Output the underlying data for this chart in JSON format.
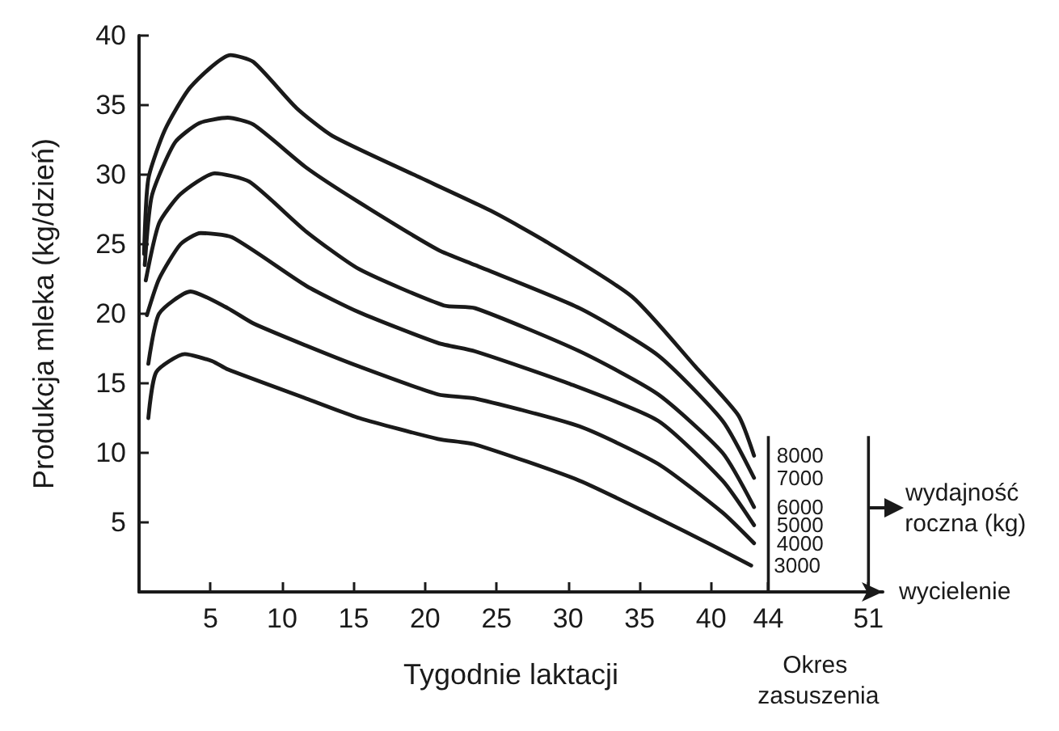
{
  "chart_data": {
    "type": "line",
    "xlabel": "Tygodnie laktacji",
    "ylabel": "Produkcja mleka (kg/dzień)",
    "xlim": [
      0,
      52
    ],
    "ylim": [
      0,
      40
    ],
    "xticks": [
      5,
      10,
      15,
      20,
      25,
      30,
      35,
      40,
      44,
      51
    ],
    "yticks": [
      5,
      10,
      15,
      20,
      25,
      30,
      35,
      40
    ],
    "annotations": [
      "wydajność roczna (kg)",
      "wycielenie",
      "Okres zasuszenia"
    ],
    "series": [
      {
        "name": "8000",
        "color": "#1a1a1a",
        "x": [
          0.35,
          0.65,
          1.8,
          3.6,
          6.4,
          8,
          11,
          13.5,
          19,
          24.6,
          28.6,
          34.5,
          38.9,
          41.9,
          43
        ],
        "values": [
          24.3,
          29.7,
          33.2,
          36.3,
          38.6,
          38.1,
          34.8,
          32.8,
          30.1,
          27.4,
          25.1,
          21.2,
          16.2,
          12.7,
          9.8
        ]
      },
      {
        "name": "7000",
        "color": "#1a1a1a",
        "x": [
          0.4,
          0.9,
          2.5,
          4.2,
          6.2,
          8,
          11.7,
          15.4,
          20.9,
          23.5,
          30.8,
          36.3,
          40.8,
          43
        ],
        "values": [
          23.5,
          28.5,
          32.3,
          33.7,
          34.1,
          33.6,
          30.5,
          28,
          24.6,
          23.5,
          20.4,
          17,
          12.3,
          8.2
        ]
      },
      {
        "name": "6000",
        "color": "#1a1a1a",
        "x": [
          0.47,
          1.4,
          2.9,
          5.3,
          7.7,
          11.7,
          15.4,
          21.3,
          23.5,
          30.8,
          36.3,
          40.8,
          43
        ],
        "values": [
          22.4,
          26.5,
          28.6,
          30.1,
          29.5,
          25.9,
          23.2,
          20.6,
          20.4,
          17.3,
          14.2,
          10,
          6.1
        ]
      },
      {
        "name": "5000",
        "color": "#1a1a1a",
        "x": [
          0.55,
          1.4,
          2.9,
          4.3,
          6.5,
          11.7,
          15.4,
          20.9,
          23.5,
          30,
          36.3,
          40.8,
          43
        ],
        "values": [
          19.9,
          22.5,
          25,
          25.8,
          25.5,
          22,
          20.1,
          17.9,
          17.3,
          15,
          12.3,
          8,
          4.8
        ]
      },
      {
        "name": "4000",
        "color": "#1a1a1a",
        "x": [
          0.65,
          1.4,
          3.6,
          6.2,
          8,
          11.7,
          15.4,
          20.9,
          23.5,
          30.8,
          36.3,
          40.8,
          43
        ],
        "values": [
          16.4,
          20,
          21.6,
          20.4,
          19.3,
          17.7,
          16.2,
          14.2,
          13.9,
          11.9,
          9.2,
          5.7,
          3.5
        ]
      },
      {
        "name": "3000",
        "color": "#1a1a1a",
        "x": [
          0.65,
          1.2,
          3.2,
          5.1,
          6.2,
          11.7,
          15.4,
          20.9,
          23.5,
          30.8,
          36.3,
          40,
          42.8
        ],
        "values": [
          12.5,
          15.8,
          17.1,
          16.6,
          16,
          13.9,
          12.5,
          11,
          10.6,
          8,
          5.3,
          3.4,
          1.9
        ]
      }
    ]
  }
}
